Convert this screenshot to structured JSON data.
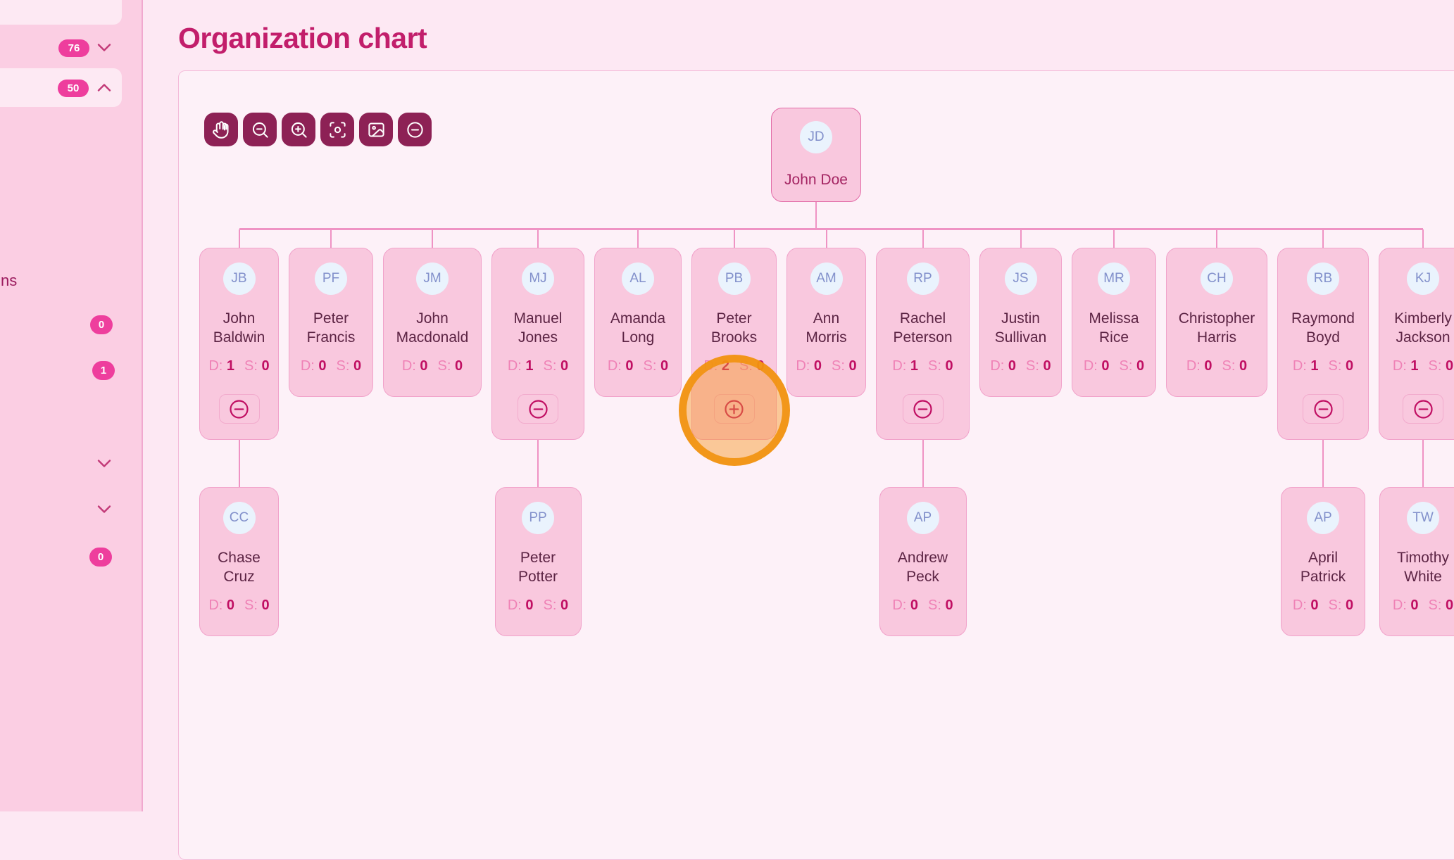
{
  "page": {
    "title": "Organization chart"
  },
  "sidebar": {
    "badge_76": "76",
    "badge_50": "50",
    "clipped_label": "ns",
    "counter_a": "0",
    "counter_b": "1",
    "counter_c": "0",
    "badge_color": "#ee3e9d"
  },
  "toolbar": {
    "buttons": [
      "pan",
      "zoom-out",
      "zoom-in",
      "fit-view",
      "image-export",
      "collapse-all"
    ],
    "button_color": "#8d2155"
  },
  "org_chart": {
    "stats_labels": {
      "directs": "D:",
      "subordinates": "S:"
    },
    "root": {
      "initials": "JD",
      "name": "John Doe"
    },
    "level1": [
      {
        "initials": "JB",
        "first": "John",
        "last": "Baldwin",
        "d": 1,
        "s": 0,
        "action": "collapse"
      },
      {
        "initials": "PF",
        "first": "Peter",
        "last": "Francis",
        "d": 0,
        "s": 0,
        "action": null
      },
      {
        "initials": "JM",
        "first": "John",
        "last": "Macdonald",
        "d": 0,
        "s": 0,
        "action": null
      },
      {
        "initials": "MJ",
        "first": "Manuel",
        "last": "Jones",
        "d": 1,
        "s": 0,
        "action": "collapse"
      },
      {
        "initials": "AL",
        "first": "Amanda",
        "last": "Long",
        "d": 0,
        "s": 0,
        "action": null
      },
      {
        "initials": "PB",
        "first": "Peter",
        "last": "Brooks",
        "d": 2,
        "s": 0,
        "action": "expand",
        "highlighted": true
      },
      {
        "initials": "AM",
        "first": "Ann",
        "last": "Morris",
        "d": 0,
        "s": 0,
        "action": null
      },
      {
        "initials": "RP",
        "first": "Rachel",
        "last": "Peterson",
        "d": 1,
        "s": 0,
        "action": "collapse"
      },
      {
        "initials": "JS",
        "first": "Justin",
        "last": "Sullivan",
        "d": 0,
        "s": 0,
        "action": null
      },
      {
        "initials": "MR",
        "first": "Melissa",
        "last": "Rice",
        "d": 0,
        "s": 0,
        "action": null
      },
      {
        "initials": "CH",
        "first": "Christopher",
        "last": "Harris",
        "d": 0,
        "s": 0,
        "action": null
      },
      {
        "initials": "RB",
        "first": "Raymond",
        "last": "Boyd",
        "d": 1,
        "s": 0,
        "action": "collapse"
      },
      {
        "initials": "KJ",
        "first": "Kimberly",
        "last": "Jackson",
        "d": 1,
        "s": 0,
        "action": "collapse"
      }
    ],
    "level2": [
      {
        "initials": "CC",
        "first": "Chase",
        "last": "Cruz",
        "d": 0,
        "s": 0,
        "parent": 0
      },
      {
        "initials": "PP",
        "first": "Peter",
        "last": "Potter",
        "d": 0,
        "s": 0,
        "parent": 3
      },
      {
        "initials": "AP",
        "first": "Andrew",
        "last": "Peck",
        "d": 0,
        "s": 0,
        "parent": 7
      },
      {
        "initials": "AP",
        "first": "April",
        "last": "Patrick",
        "d": 0,
        "s": 0,
        "parent": 11
      },
      {
        "initials": "TW",
        "first": "Timothy",
        "last": "White",
        "d": 0,
        "s": 0,
        "parent": 12
      }
    ],
    "colors": {
      "card_bg": "#f9c8de",
      "card_border": "#f1a2ca",
      "avatar_bg": "#eaf3fd",
      "name_text": "#5c2444",
      "stat_value": "#c00f63",
      "connector": "#ef93c4",
      "highlight_ring": "#f1930f"
    }
  }
}
